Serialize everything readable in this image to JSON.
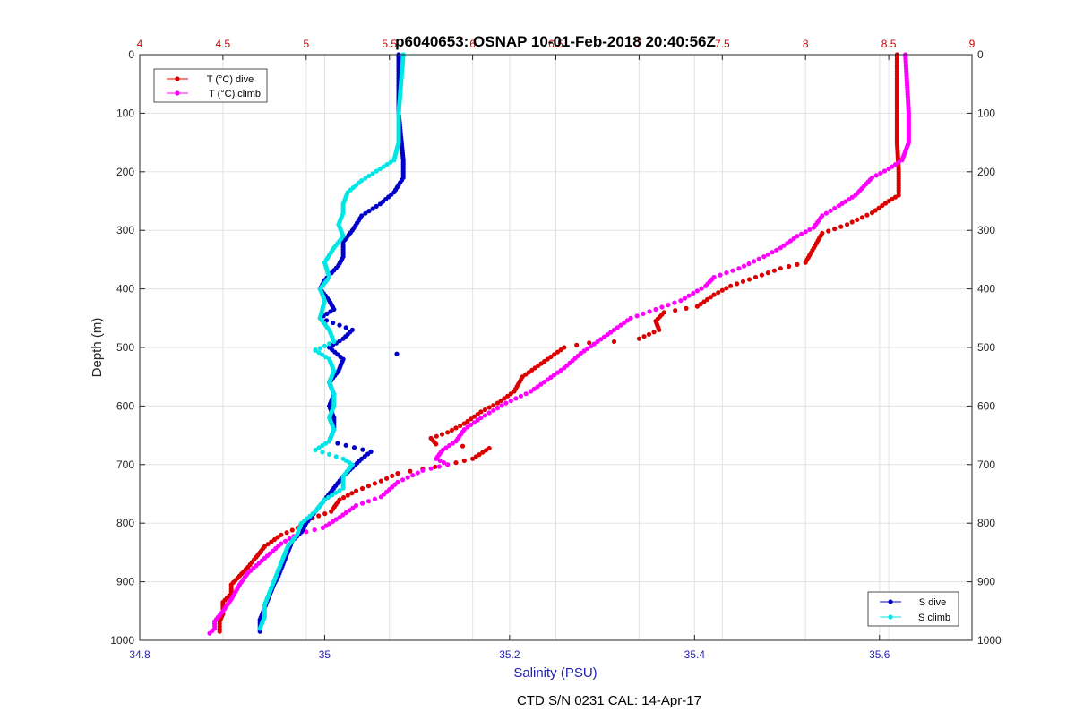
{
  "chart_data": {
    "type": "scatter",
    "title": "p6040653: OSNAP 10-01-Feb-2018 20:40:56Z",
    "footer": "CTD S/N 0231  CAL: 14-Apr-17",
    "ylabel": "Depth (m)",
    "xlabel": "Salinity (PSU)",
    "y_reversed": true,
    "ylim": [
      0,
      1000
    ],
    "y_ticks": [
      "0",
      "100",
      "200",
      "300",
      "400",
      "500",
      "600",
      "700",
      "800",
      "900",
      "1000"
    ],
    "x_bottom": {
      "label": "Salinity (PSU)",
      "lim": [
        34.8,
        35.7
      ],
      "ticks": [
        "34.8",
        "35",
        "35.2",
        "35.4",
        "35.6"
      ],
      "color": "#1f1fb4"
    },
    "x_top": {
      "label": "",
      "lim": [
        4,
        9
      ],
      "ticks": [
        "4",
        "4.5",
        "5",
        "5.5",
        "6",
        "6.5",
        "7",
        "7.5",
        "8",
        "8.5",
        "9"
      ],
      "color": "#d40000"
    },
    "grid": true,
    "legend_temperature": {
      "placement": "top-left",
      "entries": [
        {
          "label": "T (°C) dive",
          "color": "#dd0000"
        },
        {
          "label": "T (°C) climb",
          "color": "#ff00ff"
        }
      ]
    },
    "legend_salinity": {
      "placement": "bottom-right",
      "entries": [
        {
          "label": "S dive",
          "color": "#0000c8"
        },
        {
          "label": "S climb",
          "color": "#00e6e6"
        }
      ]
    },
    "series": [
      {
        "name": "T (°C) dive",
        "axis": "top",
        "color": "#dd0000",
        "points": [
          [
            8.55,
            0
          ],
          [
            8.55,
            100
          ],
          [
            8.55,
            150
          ],
          [
            8.56,
            200
          ],
          [
            8.56,
            240
          ],
          [
            8.5,
            250
          ],
          [
            8.4,
            270
          ],
          [
            8.25,
            290
          ],
          [
            8.1,
            305
          ],
          [
            8.05,
            330
          ],
          [
            8.0,
            355
          ],
          [
            7.85,
            365
          ],
          [
            7.7,
            380
          ],
          [
            7.55,
            395
          ],
          [
            7.45,
            410
          ],
          [
            7.35,
            430
          ],
          [
            7.15,
            440
          ],
          [
            7.1,
            455
          ],
          [
            7.12,
            470
          ],
          [
            7.0,
            485
          ],
          [
            6.85,
            490
          ],
          [
            6.7,
            492
          ],
          [
            6.55,
            500
          ],
          [
            6.45,
            520
          ],
          [
            6.3,
            550
          ],
          [
            6.25,
            575
          ],
          [
            6.15,
            595
          ],
          [
            6.05,
            610
          ],
          [
            5.95,
            630
          ],
          [
            5.85,
            645
          ],
          [
            5.75,
            655
          ],
          [
            5.78,
            665
          ],
          [
            6.1,
            672
          ],
          [
            6.0,
            690
          ],
          [
            5.85,
            700
          ],
          [
            5.55,
            715
          ],
          [
            5.45,
            728
          ],
          [
            5.3,
            745
          ],
          [
            5.2,
            760
          ],
          [
            5.15,
            780
          ],
          [
            5.0,
            795
          ],
          [
            4.95,
            808
          ],
          [
            4.85,
            820
          ],
          [
            4.75,
            840
          ],
          [
            4.7,
            858
          ],
          [
            4.65,
            875
          ],
          [
            4.6,
            890
          ],
          [
            4.55,
            905
          ],
          [
            4.55,
            920
          ],
          [
            4.5,
            935
          ],
          [
            4.5,
            955
          ],
          [
            4.48,
            968
          ],
          [
            4.48,
            985
          ]
        ]
      },
      {
        "name": "T (°C) climb",
        "axis": "top",
        "color": "#ff00ff",
        "points": [
          [
            8.6,
            0
          ],
          [
            8.62,
            100
          ],
          [
            8.62,
            150
          ],
          [
            8.58,
            180
          ],
          [
            8.5,
            195
          ],
          [
            8.4,
            210
          ],
          [
            8.35,
            225
          ],
          [
            8.3,
            240
          ],
          [
            8.2,
            258
          ],
          [
            8.1,
            275
          ],
          [
            8.05,
            295
          ],
          [
            7.95,
            310
          ],
          [
            7.85,
            330
          ],
          [
            7.75,
            345
          ],
          [
            7.6,
            365
          ],
          [
            7.45,
            380
          ],
          [
            7.4,
            395
          ],
          [
            7.25,
            420
          ],
          [
            7.1,
            435
          ],
          [
            6.95,
            450
          ],
          [
            6.85,
            470
          ],
          [
            6.75,
            490
          ],
          [
            6.65,
            510
          ],
          [
            6.55,
            535
          ],
          [
            6.45,
            555
          ],
          [
            6.35,
            575
          ],
          [
            6.2,
            595
          ],
          [
            6.05,
            620
          ],
          [
            5.95,
            640
          ],
          [
            5.9,
            660
          ],
          [
            5.82,
            675
          ],
          [
            5.78,
            690
          ],
          [
            5.85,
            700
          ],
          [
            5.7,
            710
          ],
          [
            5.55,
            730
          ],
          [
            5.45,
            755
          ],
          [
            5.3,
            770
          ],
          [
            5.2,
            790
          ],
          [
            5.1,
            808
          ],
          [
            4.95,
            818
          ],
          [
            4.85,
            835
          ],
          [
            4.75,
            860
          ],
          [
            4.65,
            885
          ],
          [
            4.6,
            905
          ],
          [
            4.55,
            930
          ],
          [
            4.5,
            950
          ],
          [
            4.45,
            968
          ],
          [
            4.45,
            980
          ],
          [
            4.42,
            988
          ]
        ]
      },
      {
        "name": "S dive",
        "axis": "bottom",
        "color": "#0000c8",
        "points": [
          [
            35.08,
            0
          ],
          [
            35.08,
            100
          ],
          [
            35.085,
            180
          ],
          [
            35.085,
            210
          ],
          [
            35.075,
            235
          ],
          [
            35.06,
            255
          ],
          [
            35.04,
            275
          ],
          [
            35.03,
            300
          ],
          [
            35.02,
            320
          ],
          [
            35.02,
            345
          ],
          [
            35.015,
            360
          ],
          [
            35.0,
            385
          ],
          [
            34.995,
            400
          ],
          [
            35.005,
            420
          ],
          [
            35.01,
            435
          ],
          [
            34.995,
            450
          ],
          [
            35.03,
            470
          ],
          [
            35.02,
            485
          ],
          [
            35.005,
            500
          ],
          [
            35.02,
            520
          ],
          [
            35.015,
            540
          ],
          [
            35.005,
            560
          ],
          [
            35.01,
            580
          ],
          [
            35.005,
            600
          ],
          [
            35.01,
            620
          ],
          [
            35.01,
            640
          ],
          [
            35.005,
            660
          ],
          [
            35.05,
            678
          ],
          [
            35.04,
            690
          ],
          [
            35.03,
            705
          ],
          [
            35.02,
            720
          ],
          [
            35.01,
            740
          ],
          [
            35.0,
            760
          ],
          [
            34.99,
            780
          ],
          [
            34.98,
            800
          ],
          [
            34.975,
            815
          ],
          [
            34.965,
            830
          ],
          [
            34.96,
            850
          ],
          [
            34.955,
            870
          ],
          [
            34.95,
            890
          ],
          [
            34.945,
            905
          ],
          [
            34.94,
            925
          ],
          [
            34.935,
            945
          ],
          [
            34.93,
            965
          ],
          [
            34.93,
            985
          ]
        ]
      },
      {
        "name": "S climb",
        "axis": "bottom",
        "color": "#00e6e6",
        "points": [
          [
            35.085,
            0
          ],
          [
            35.08,
            100
          ],
          [
            35.08,
            150
          ],
          [
            35.075,
            180
          ],
          [
            35.06,
            195
          ],
          [
            35.04,
            215
          ],
          [
            35.025,
            235
          ],
          [
            35.02,
            255
          ],
          [
            35.02,
            270
          ],
          [
            35.015,
            290
          ],
          [
            35.02,
            310
          ],
          [
            35.01,
            330
          ],
          [
            35.0,
            355
          ],
          [
            35.005,
            380
          ],
          [
            34.995,
            400
          ],
          [
            35.0,
            420
          ],
          [
            34.995,
            450
          ],
          [
            35.005,
            470
          ],
          [
            35.01,
            490
          ],
          [
            34.99,
            505
          ],
          [
            35.005,
            520
          ],
          [
            35.01,
            540
          ],
          [
            35.005,
            560
          ],
          [
            35.01,
            580
          ],
          [
            35.01,
            600
          ],
          [
            35.005,
            620
          ],
          [
            35.01,
            640
          ],
          [
            35.005,
            660
          ],
          [
            34.99,
            675
          ],
          [
            35.02,
            690
          ],
          [
            35.03,
            700
          ],
          [
            35.02,
            720
          ],
          [
            35.02,
            740
          ],
          [
            35.0,
            760
          ],
          [
            34.99,
            780
          ],
          [
            34.975,
            800
          ],
          [
            34.97,
            820
          ],
          [
            34.96,
            840
          ],
          [
            34.955,
            860
          ],
          [
            34.95,
            880
          ],
          [
            34.945,
            900
          ],
          [
            34.94,
            920
          ],
          [
            34.935,
            940
          ],
          [
            34.935,
            960
          ],
          [
            34.93,
            980
          ]
        ]
      }
    ]
  }
}
